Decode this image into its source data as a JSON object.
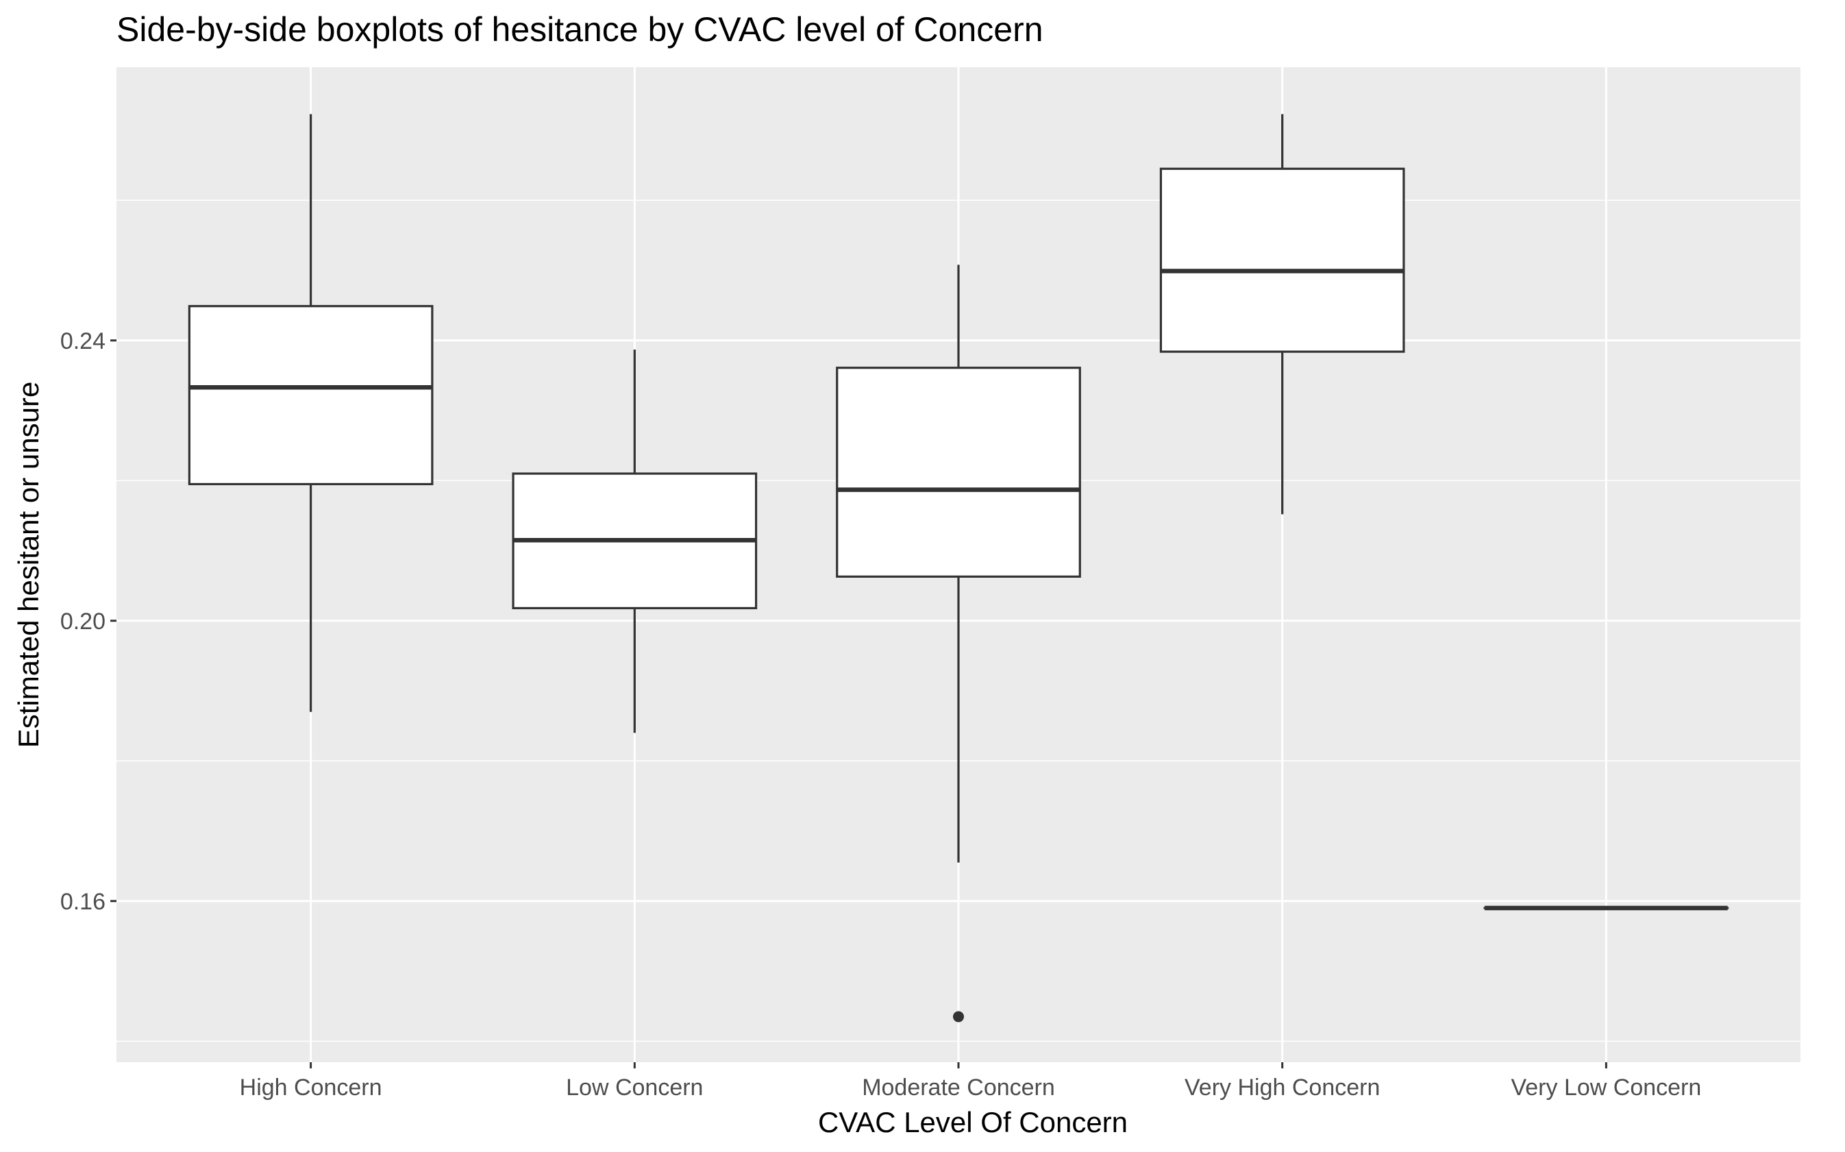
{
  "chart_data": {
    "type": "boxplot",
    "title": "Side-by-side boxplots of hesitance by CVAC level of Concern",
    "xlabel": "CVAC Level Of Concern",
    "ylabel": "Estimated hesitant or unsure",
    "ylim": [
      0.137,
      0.279
    ],
    "yticks": [
      0.16,
      0.2,
      0.24
    ],
    "ytick_labels": [
      "0.16",
      "0.20",
      "0.24"
    ],
    "grid": true,
    "categories": [
      "High Concern",
      "Low Concern",
      "Moderate Concern",
      "Very High Concern",
      "Very Low Concern"
    ],
    "boxes": [
      {
        "category": "High Concern",
        "whisker_low": 0.187,
        "q1": 0.2195,
        "median": 0.2333,
        "q3": 0.2449,
        "whisker_high": 0.2723,
        "outliers": []
      },
      {
        "category": "Low Concern",
        "whisker_low": 0.184,
        "q1": 0.2018,
        "median": 0.2115,
        "q3": 0.221,
        "whisker_high": 0.2387,
        "outliers": []
      },
      {
        "category": "Moderate Concern",
        "whisker_low": 0.1655,
        "q1": 0.2063,
        "median": 0.2187,
        "q3": 0.2361,
        "whisker_high": 0.2508,
        "outliers": [
          0.1435
        ]
      },
      {
        "category": "Very High Concern",
        "whisker_low": 0.2152,
        "q1": 0.2384,
        "median": 0.2499,
        "q3": 0.2645,
        "whisker_high": 0.2723,
        "outliers": []
      },
      {
        "category": "Very Low Concern",
        "whisker_low": 0.159,
        "q1": 0.159,
        "median": 0.159,
        "q3": 0.159,
        "whisker_high": 0.159,
        "outliers": []
      }
    ],
    "colors": {
      "panel_background": "#ebebeb",
      "grid_line": "#ffffff",
      "box_fill": "#ffffff",
      "box_stroke": "#333333",
      "tick_label": "#4d4d4d"
    }
  }
}
